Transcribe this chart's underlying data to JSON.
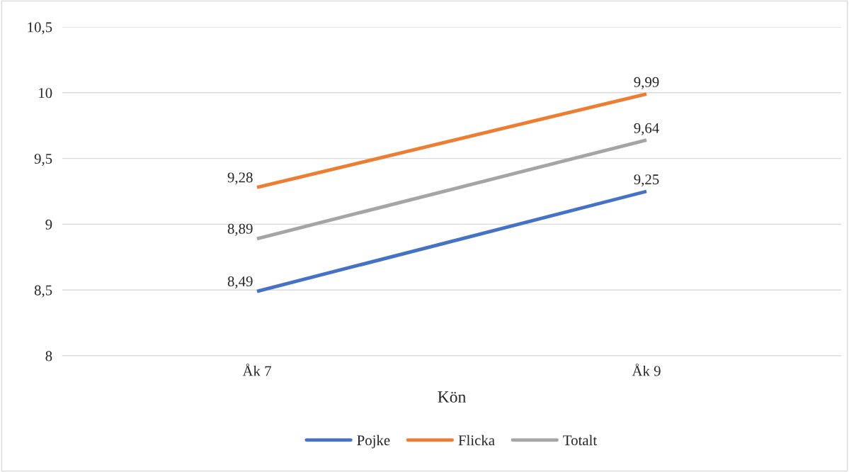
{
  "chart_data": {
    "type": "line",
    "xlabel": "Kön",
    "categories": [
      "Åk 7",
      "Åk 9"
    ],
    "series": [
      {
        "name": "Pojke",
        "color": "#4472c4",
        "values": [
          8.49,
          9.25
        ],
        "value_labels": [
          "8,49",
          "9,25"
        ]
      },
      {
        "name": "Flicka",
        "color": "#ed7d31",
        "values": [
          9.28,
          9.99
        ],
        "value_labels": [
          "9,28",
          "9,99"
        ]
      },
      {
        "name": "Totalt",
        "color": "#a5a5a5",
        "values": [
          8.89,
          9.64
        ],
        "value_labels": [
          "8,89",
          "9,64"
        ]
      }
    ],
    "ylim": [
      8,
      10.5
    ],
    "yticks": [
      8,
      {
        "value": 8.5,
        "label": "8,5"
      },
      9,
      {
        "value": 9.5,
        "label": "9,5"
      },
      10,
      {
        "value": 10.5,
        "label": "10,5"
      }
    ],
    "grid": "y",
    "legend": "bottom",
    "marker": "none",
    "line_style": "solid"
  }
}
